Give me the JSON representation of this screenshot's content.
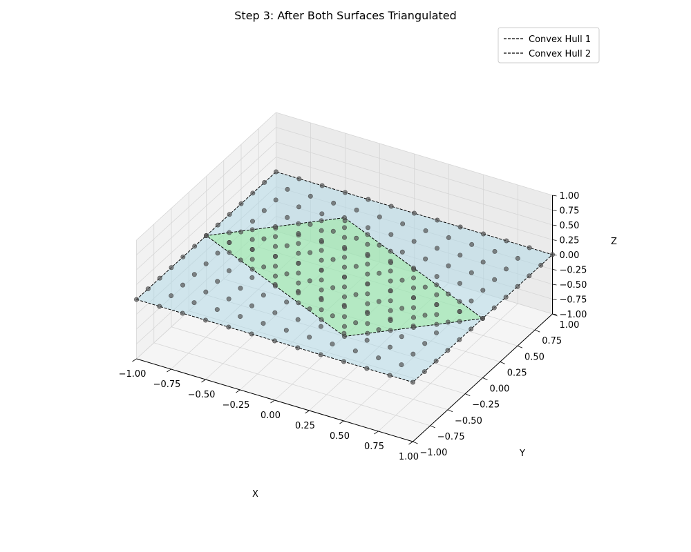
{
  "chart_data": {
    "type": "scatter",
    "projection": "3d",
    "title": "Step 3: After Both Surfaces Triangulated",
    "xlabel": "X",
    "ylabel": "Y",
    "zlabel": "Z",
    "xlim": [
      -1.0,
      1.0
    ],
    "ylim": [
      -1.0,
      1.0
    ],
    "zlim": [
      -1.0,
      1.0
    ],
    "x_ticks": [
      "−1.00",
      "−0.75",
      "−0.50",
      "−0.25",
      "0.00",
      "0.25",
      "0.50",
      "0.75",
      "1.00"
    ],
    "y_ticks": [
      "−1.00",
      "−0.75",
      "−0.50",
      "−0.25",
      "0.00",
      "0.25",
      "0.50",
      "0.75",
      "1.00"
    ],
    "z_ticks": [
      "−1.00",
      "−0.75",
      "−0.50",
      "−0.25",
      "0.00",
      "0.25",
      "0.50",
      "0.75",
      "1.00"
    ],
    "grid": true,
    "legend_position": "top-right",
    "legend": [
      {
        "label": "Convex Hull 1",
        "line_style": "dashed",
        "color": "#000000"
      },
      {
        "label": "Convex Hull 2",
        "line_style": "dashed",
        "color": "#000000"
      }
    ],
    "surfaces": [
      {
        "name": "Convex Hull 1",
        "plane": "z = 0",
        "fill_color": "#add8e6",
        "hull": [
          [
            -1,
            -1,
            0
          ],
          [
            1,
            -1,
            0
          ],
          [
            1,
            1,
            0
          ],
          [
            -1,
            1,
            0
          ]
        ],
        "points": {
          "x_range": [
            -1,
            1
          ],
          "y_range": [
            -1,
            1
          ],
          "z": 0,
          "grid_steps": 12
        }
      },
      {
        "name": "Convex Hull 2",
        "plane": "y = 0",
        "fill_color": "#90ee90",
        "hull": [
          [
            0,
            0,
            -1
          ],
          [
            1,
            0,
            0
          ],
          [
            0,
            0,
            1
          ],
          [
            -1,
            0,
            0
          ]
        ],
        "points": {
          "x_range": [
            -1,
            1
          ],
          "z_range": [
            -1,
            1
          ],
          "y": 0,
          "grid_steps": 12,
          "shape": "diamond"
        }
      }
    ],
    "point_color": "#555555"
  }
}
